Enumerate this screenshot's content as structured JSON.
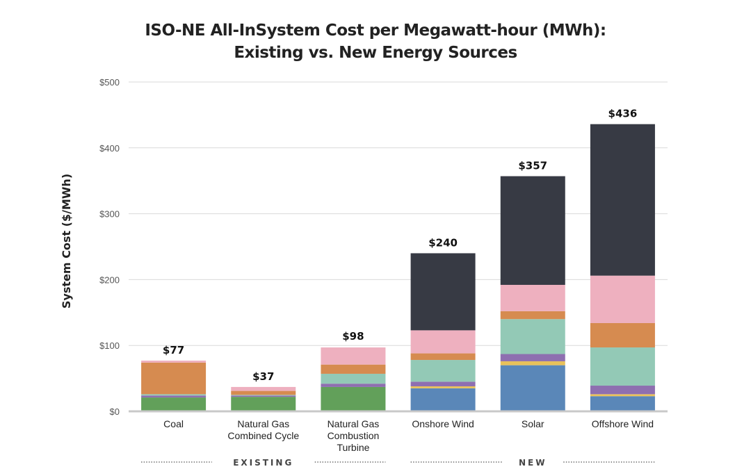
{
  "chart_data": {
    "type": "bar",
    "stacked": true,
    "title_lines": [
      "ISO-NE All-InSystem Cost per Megawatt-hour (MWh):",
      "Existing vs. New Energy Sources"
    ],
    "ylabel": "System Cost ($/MWh)",
    "xlabel": "",
    "ylim": [
      0,
      500
    ],
    "yticks": [
      {
        "value": 0,
        "label": "$0"
      },
      {
        "value": 100,
        "label": "$100"
      },
      {
        "value": 200,
        "label": "$200"
      },
      {
        "value": 300,
        "label": "$300"
      },
      {
        "value": 400,
        "label": "$400"
      },
      {
        "value": 500,
        "label": "$500"
      }
    ],
    "grid": true,
    "categories": [
      [
        "Coal"
      ],
      [
        "Natural Gas",
        "Combined Cycle"
      ],
      [
        "Natural Gas",
        "Combustion",
        "Turbine"
      ],
      [
        "Onshore Wind"
      ],
      [
        "Solar"
      ],
      [
        "Offshore Wind"
      ]
    ],
    "totals": [
      {
        "value": 77,
        "label": "$77"
      },
      {
        "value": 37,
        "label": "$37"
      },
      {
        "value": 98,
        "label": "$98"
      },
      {
        "value": 240,
        "label": "$240"
      },
      {
        "value": 357,
        "label": "$357"
      },
      {
        "value": 436,
        "label": "$436"
      }
    ],
    "series": [
      {
        "color": "#5a87b8",
        "values": [
          0,
          0,
          0,
          35,
          70,
          23
        ]
      },
      {
        "color": "#62a05a",
        "values": [
          21,
          22,
          37,
          0,
          0,
          0
        ]
      },
      {
        "color": "#e8c15a",
        "values": [
          0,
          0,
          0,
          3,
          6,
          3
        ]
      },
      {
        "color": "#8e6fb0",
        "values": [
          3,
          2,
          5,
          7,
          11,
          13
        ]
      },
      {
        "color": "#93c9b6",
        "values": [
          2,
          1,
          15,
          33,
          53,
          58
        ]
      },
      {
        "color": "#d68b50",
        "values": [
          48,
          6,
          14,
          10,
          12,
          37
        ]
      },
      {
        "color": "#eeb0bf",
        "values": [
          3,
          6,
          26,
          35,
          40,
          72
        ]
      },
      {
        "color": "#373a44",
        "values": [
          0,
          0,
          0,
          117,
          165,
          230
        ]
      }
    ],
    "groups": [
      {
        "label": "EXISTING",
        "from": 0,
        "to": 2
      },
      {
        "label": "NEW",
        "from": 3,
        "to": 5
      }
    ]
  }
}
